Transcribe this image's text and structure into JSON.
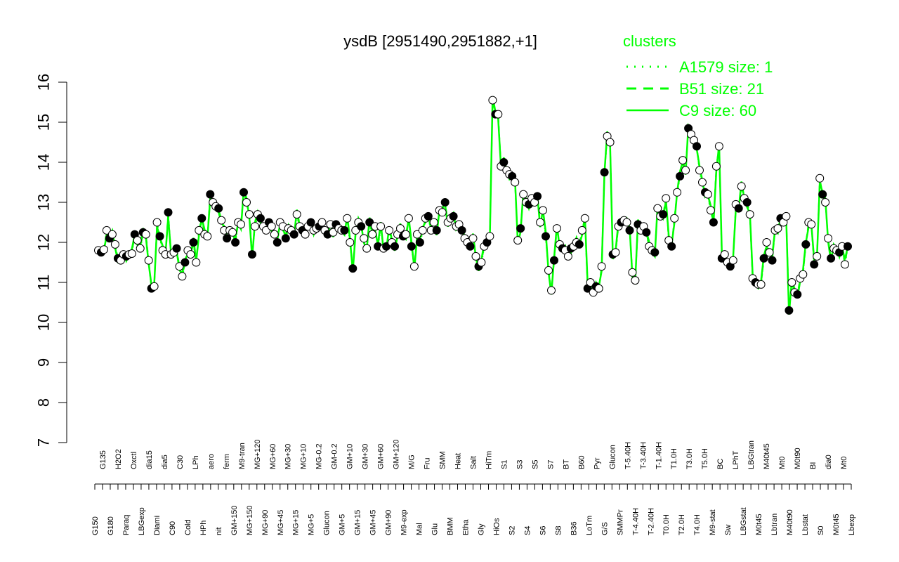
{
  "chart_data": {
    "type": "line",
    "title": "ysdB [2951490,2951882,+1]",
    "xlabel": "",
    "ylabel": "",
    "ylim": [
      7,
      16
    ],
    "yticks": [
      "7",
      "8",
      "9",
      "10",
      "11",
      "12",
      "13",
      "14",
      "15",
      "16"
    ],
    "x_tick_labels": [
      "G150",
      "G135",
      "G180",
      "H2O2",
      "Paraq",
      "Oxctl",
      "LBGexp",
      "dia15",
      "Diami",
      "dia5",
      "C90",
      "C30",
      "Cold",
      "LPh",
      "HPh",
      "aero",
      "nit",
      "ferm",
      "GM+150",
      "M9-tran",
      "MG+150",
      "MG+120",
      "MG+90",
      "MG+60",
      "MG+45",
      "MG+30",
      "MG+15",
      "MG+10",
      "MG+5",
      "MG-0.2",
      "Glucon",
      "GM-0.2",
      "GM+5",
      "GM+10",
      "GM+15",
      "GM+30",
      "GM+45",
      "GM+60",
      "GM+90",
      "GM+120",
      "M9-exp",
      "M/G",
      "Mal",
      "Fru",
      "Glu",
      "SMM",
      "BMM",
      "Heat",
      "Etha",
      "Salt",
      "Gly",
      "HiTm",
      "HiOs",
      "S1",
      "S2",
      "S3",
      "S4",
      "S5",
      "S6",
      "S7",
      "S8",
      "BT",
      "B36",
      "B60",
      "LoTm",
      "Pyr",
      "G/S",
      "Glucon",
      "SMMPr",
      "T-5.40H",
      "T-4.40H",
      "T-3.40H",
      "T-2.40H",
      "T-1.40H",
      "T0.0H",
      "T1.0H",
      "T2.0H",
      "T3.0H",
      "T4.0H",
      "T5.0H",
      "M9-stat",
      "BC",
      "Sw",
      "LPhT",
      "LBGstat",
      "LBGtran",
      "M0t45",
      "M40t45",
      "Lbtran",
      "Mt0",
      "M40t90",
      "M0t90",
      "Lbstat",
      "BI",
      "S0",
      "dia0",
      "M0t45",
      "Mt0",
      "Lbexp"
    ],
    "y_points": [
      11.8,
      11.75,
      11.82,
      12.3,
      12.1,
      12.2,
      11.95,
      11.6,
      11.55,
      11.7,
      11.65,
      11.7,
      11.72,
      12.2,
      12.05,
      11.85,
      12.25,
      12.2,
      11.55,
      10.85,
      10.9,
      12.5,
      12.15,
      11.8,
      11.7,
      12.75,
      11.7,
      11.75,
      11.85,
      11.4,
      11.15,
      11.5,
      11.8,
      11.7,
      12.0,
      11.5,
      12.3,
      12.6,
      12.2,
      12.15,
      13.2,
      13.0,
      12.9,
      12.85,
      12.55,
      12.3,
      12.1,
      12.3,
      12.25,
      12.0,
      12.5,
      12.45,
      13.25,
      13.0,
      12.7,
      11.7,
      12.4,
      12.7,
      12.6,
      12.4,
      12.3,
      12.5,
      12.4,
      12.2,
      12.0,
      12.5,
      12.4,
      12.1,
      12.35,
      12.3,
      12.2,
      12.7,
      12.4,
      12.3,
      12.2,
      12.4,
      12.5,
      12.3,
      12.35,
      12.4,
      12.5,
      12.3,
      12.2,
      12.45,
      12.25,
      12.45,
      12.35,
      12.3,
      12.3,
      12.6,
      12.0,
      11.35,
      12.3,
      12.5,
      12.4,
      12.1,
      11.85,
      12.5,
      12.2,
      12.4,
      11.9,
      12.4,
      11.85,
      11.9,
      12.3,
      12.0,
      11.9,
      12.2,
      12.35,
      12.15,
      12.2,
      12.6,
      11.9,
      11.4,
      12.2,
      12.0,
      12.3,
      12.6,
      12.65,
      12.3,
      12.5,
      12.3,
      12.8,
      12.75,
      13.0,
      12.5,
      12.6,
      12.65,
      12.4,
      12.45,
      12.3,
      12.1,
      12.0,
      11.9,
      12.1,
      11.65,
      11.4,
      11.5,
      11.9,
      12.0,
      12.15,
      15.55,
      15.2,
      15.2,
      13.9,
      14.0,
      13.8,
      13.7,
      13.65,
      13.5,
      12.05,
      12.35,
      13.2,
      13.0,
      12.95,
      13.1,
      13.0,
      13.15,
      12.5,
      12.8,
      12.15,
      11.3,
      10.8,
      11.55,
      12.35,
      11.95,
      11.85,
      11.8,
      11.65,
      11.85,
      11.9,
      12.0,
      11.95,
      12.3,
      12.6,
      10.85,
      11.0,
      10.75,
      10.9,
      10.85,
      11.4,
      13.75,
      14.65,
      14.5,
      11.7,
      11.75,
      12.4,
      12.5,
      12.55,
      12.5,
      12.3,
      11.25,
      11.05,
      12.45,
      12.3,
      12.4,
      12.25,
      11.9,
      11.8,
      11.75,
      12.85,
      12.65,
      12.7,
      13.1,
      12.05,
      11.9,
      12.6,
      13.25,
      13.65,
      14.05,
      13.8,
      14.85,
      14.7,
      14.55,
      14.4,
      13.8,
      13.5,
      13.25,
      13.2,
      12.8,
      12.5,
      13.9,
      14.4,
      11.6,
      11.7,
      11.5,
      11.4,
      11.55,
      12.95,
      12.85,
      13.4,
      13.1,
      13.0,
      12.7,
      11.1,
      11.0,
      10.95,
      10.95,
      11.6,
      12.0,
      11.75,
      11.55,
      12.3,
      12.35,
      12.6,
      12.5,
      12.65,
      10.3,
      11.0,
      10.75,
      10.7,
      11.1,
      11.2,
      11.95,
      12.5,
      12.45,
      11.45,
      11.65,
      13.6,
      13.2,
      13.0,
      12.1,
      11.6,
      11.85,
      11.8,
      11.75,
      11.9,
      11.45,
      11.9
    ],
    "series": [
      {
        "name": "A1579 size: 1",
        "style": "dotted",
        "color": "#00ff00"
      },
      {
        "name": "B51 size: 21",
        "style": "dashed",
        "color": "#00ff00"
      },
      {
        "name": "C9 size: 60",
        "style": "solid",
        "color": "#00ff00"
      }
    ],
    "legend": {
      "title": "clusters",
      "placement": "top-right",
      "color": "#00ff00"
    },
    "grid": false
  }
}
